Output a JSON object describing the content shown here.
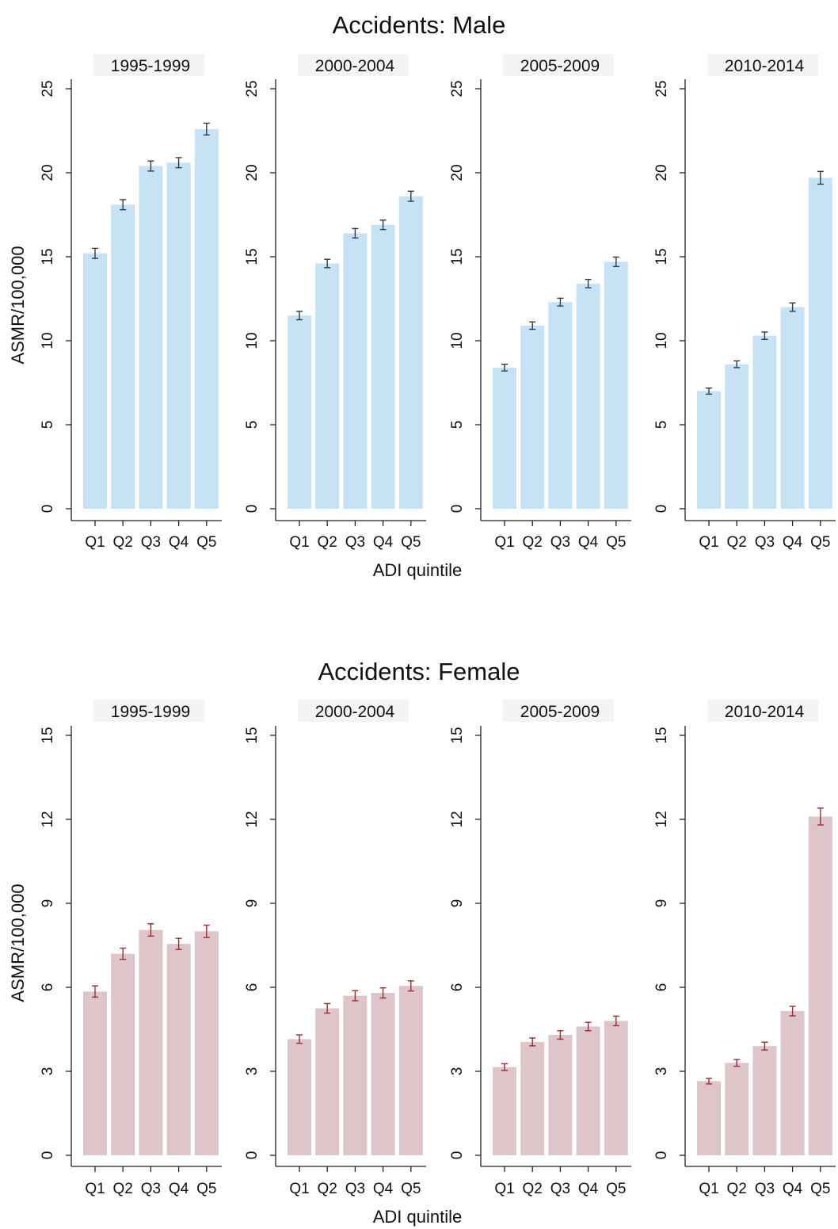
{
  "chart_data": [
    {
      "type": "bar",
      "title": "Accidents: Male",
      "xlabel": "ADI quintile",
      "ylabel": "ASMR/100,000",
      "ylim": [
        0,
        25
      ],
      "yticks": [
        0,
        5,
        10,
        15,
        20,
        25
      ],
      "categories": [
        "Q1",
        "Q2",
        "Q3",
        "Q4",
        "Q5"
      ],
      "error_bars": true,
      "colors": {
        "bar": "#c6e2f4",
        "error_bar": "#2e3b4e"
      },
      "panels": [
        {
          "title": "1995-1999",
          "values": [
            15.2,
            18.1,
            20.4,
            20.6,
            22.6
          ],
          "errors": [
            0.3,
            0.3,
            0.3,
            0.3,
            0.35
          ]
        },
        {
          "title": "2000-2004",
          "values": [
            11.5,
            14.6,
            16.4,
            16.9,
            18.6
          ],
          "errors": [
            0.25,
            0.25,
            0.28,
            0.28,
            0.3
          ]
        },
        {
          "title": "2005-2009",
          "values": [
            8.4,
            10.9,
            12.3,
            13.4,
            14.7
          ],
          "errors": [
            0.2,
            0.22,
            0.23,
            0.25,
            0.28
          ]
        },
        {
          "title": "2010-2014",
          "values": [
            7.0,
            8.6,
            10.3,
            12.0,
            19.7
          ],
          "errors": [
            0.18,
            0.2,
            0.22,
            0.25,
            0.38
          ]
        }
      ]
    },
    {
      "type": "bar",
      "title": "Accidents: Female",
      "xlabel": "ADI quintile",
      "ylabel": "ASMR/100,000",
      "ylim": [
        0,
        15
      ],
      "yticks": [
        0,
        3,
        6,
        9,
        12,
        15
      ],
      "categories": [
        "Q1",
        "Q2",
        "Q3",
        "Q4",
        "Q5"
      ],
      "error_bars": true,
      "colors": {
        "bar": "#ddc5c9",
        "error_bar": "#9a2e2e"
      },
      "panels": [
        {
          "title": "1995-1999",
          "values": [
            5.85,
            7.2,
            8.05,
            7.55,
            8.0
          ],
          "errors": [
            0.2,
            0.2,
            0.22,
            0.2,
            0.22
          ]
        },
        {
          "title": "2000-2004",
          "values": [
            4.15,
            5.25,
            5.7,
            5.8,
            6.05
          ],
          "errors": [
            0.15,
            0.17,
            0.18,
            0.18,
            0.18
          ]
        },
        {
          "title": "2005-2009",
          "values": [
            3.15,
            4.05,
            4.3,
            4.6,
            4.8
          ],
          "errors": [
            0.12,
            0.14,
            0.15,
            0.15,
            0.17
          ]
        },
        {
          "title": "2010-2014",
          "values": [
            2.65,
            3.3,
            3.9,
            5.15,
            12.1
          ],
          "errors": [
            0.1,
            0.12,
            0.14,
            0.17,
            0.3
          ]
        }
      ]
    }
  ]
}
